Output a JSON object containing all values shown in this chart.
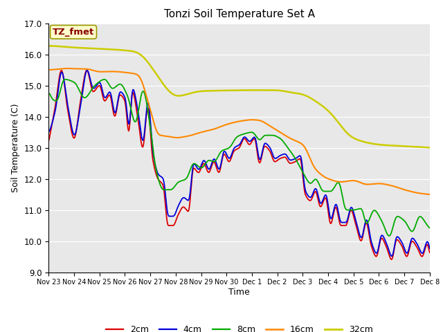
{
  "title": "Tonzi Soil Temperature Set A",
  "xlabel": "Time",
  "ylabel": "Soil Temperature (C)",
  "ylim": [
    9.0,
    17.0
  ],
  "annotation_text": "TZ_fmet",
  "annotation_color": "#8B0000",
  "annotation_bg": "#ffffcc",
  "annotation_border": "#999900",
  "plot_bg": "#e8e8e8",
  "fig_bg": "#ffffff",
  "legend_entries": [
    "2cm",
    "4cm",
    "8cm",
    "16cm",
    "32cm"
  ],
  "line_colors": [
    "#dd0000",
    "#0000dd",
    "#00aa00",
    "#ff8800",
    "#cccc00"
  ],
  "line_widths": [
    1.3,
    1.3,
    1.3,
    1.5,
    1.8
  ],
  "x_tick_labels": [
    "Nov 23",
    "Nov 24",
    "Nov 25",
    "Nov 26",
    "Nov 27",
    "Nov 28",
    "Nov 29",
    "Nov 30",
    "Dec 1",
    "Dec 2",
    "Dec 3",
    "Dec 4",
    "Dec 5",
    "Dec 6",
    "Dec 7",
    "Dec 8"
  ],
  "yticks": [
    9.0,
    10.0,
    11.0,
    12.0,
    13.0,
    14.0,
    15.0,
    16.0,
    17.0
  ]
}
